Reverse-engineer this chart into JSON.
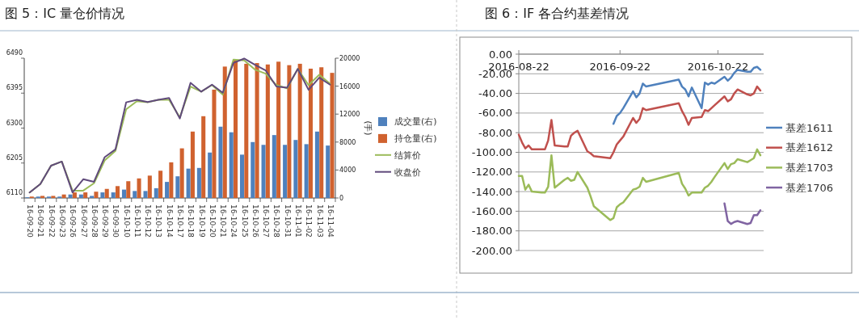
{
  "chart_data": [
    {
      "type": "bar",
      "title": "图 5：IC 量仓价情况",
      "categories": [
        "16-09-20",
        "16-09-21",
        "16-09-22",
        "16-09-23",
        "16-09-26",
        "16-09-27",
        "16-09-28",
        "16-09-29",
        "16-09-30",
        "16-10-10",
        "16-10-11",
        "16-10-12",
        "16-10-13",
        "16-10-14",
        "16-10-17",
        "16-10-18",
        "16-10-19",
        "16-10-20",
        "16-10-21",
        "16-10-24",
        "16-10-25",
        "16-10-26",
        "16-10-27",
        "16-10-28",
        "16-10-31",
        "16-11-01",
        "16-11-02",
        "16-11-03",
        "16-11-04"
      ],
      "series": [
        {
          "name": "成交量(右)",
          "type": "bar",
          "axis": "y2",
          "color": "#4f81bd",
          "values": [
            100,
            200,
            200,
            200,
            500,
            500,
            300,
            800,
            800,
            1200,
            1000,
            1000,
            1400,
            2300,
            3100,
            4200,
            4300,
            6500,
            10200,
            9400,
            6200,
            8000,
            7600,
            9000,
            7600,
            8300,
            7700,
            9500,
            7500
          ]
        },
        {
          "name": "持仓量(右)",
          "type": "bar",
          "axis": "y2",
          "color": "#d0622f",
          "values": [
            200,
            300,
            300,
            500,
            800,
            800,
            900,
            1300,
            1700,
            2400,
            2800,
            3200,
            3900,
            5100,
            7100,
            9500,
            11700,
            15500,
            18800,
            19700,
            19200,
            19300,
            19100,
            19500,
            19000,
            19200,
            18500,
            18700,
            17900
          ]
        },
        {
          "name": "结算价",
          "type": "line",
          "color": "#9bbb59",
          "values": [
            6125,
            6148,
            6198,
            6209,
            6130,
            6130,
            6150,
            6212,
            6238,
            6351,
            6373,
            6370,
            6377,
            6377,
            6329,
            6413,
            6399,
            6417,
            6391,
            6486,
            6484,
            6459,
            6448,
            6417,
            6408,
            6461,
            6417,
            6445,
            6421
          ]
        },
        {
          "name": "收盘价",
          "type": "line",
          "color": "#604a7b",
          "values": [
            6125,
            6148,
            6198,
            6209,
            6125,
            6161,
            6154,
            6221,
            6242,
            6370,
            6377,
            6371,
            6377,
            6382,
            6326,
            6423,
            6399,
            6418,
            6396,
            6477,
            6489,
            6472,
            6457,
            6413,
            6410,
            6461,
            6404,
            6437,
            6418
          ]
        }
      ],
      "ylim": [
        6110,
        6490
      ],
      "yticks": [
        6110,
        6205,
        6300,
        6395,
        6490
      ],
      "y2lim": [
        0,
        20000
      ],
      "y2ticks": [
        0,
        4000,
        8000,
        12000,
        16000,
        20000
      ],
      "y2label": "(手)",
      "legend": "right"
    },
    {
      "type": "line",
      "title": "图 6：IF 各合约基差情况",
      "series": [
        {
          "name": "基差1611",
          "color": "#4f81bd",
          "x": [
            "2016-09-20",
            "2016-09-21",
            "2016-09-22",
            "2016-09-23",
            "2016-09-26",
            "2016-09-27",
            "2016-09-28",
            "2016-09-29",
            "2016-09-30",
            "2016-10-10",
            "2016-10-11",
            "2016-10-12",
            "2016-10-13",
            "2016-10-14",
            "2016-10-17",
            "2016-10-18",
            "2016-10-19",
            "2016-10-20",
            "2016-10-21",
            "2016-10-24",
            "2016-10-25",
            "2016-10-26",
            "2016-10-27",
            "2016-10-28",
            "2016-10-31",
            "2016-11-01",
            "2016-11-02",
            "2016-11-03",
            "2016-11-04"
          ],
          "values": [
            -71,
            -63,
            -60,
            -55,
            -38,
            -44,
            -40,
            -30,
            -33,
            -26,
            -33,
            -36,
            -43,
            -34,
            -55,
            -29,
            -31,
            -29,
            -30,
            -23,
            -27,
            -24,
            -19,
            -16,
            -18,
            -18,
            -14,
            -13,
            -16
          ]
        },
        {
          "name": "基差1612",
          "color": "#c0504d",
          "x": [
            "2016-08-22",
            "2016-08-23",
            "2016-08-24",
            "2016-08-25",
            "2016-08-26",
            "2016-08-29",
            "2016-08-30",
            "2016-08-31",
            "2016-09-01",
            "2016-09-02",
            "2016-09-05",
            "2016-09-06",
            "2016-09-07",
            "2016-09-08",
            "2016-09-09",
            "2016-09-12",
            "2016-09-13",
            "2016-09-14",
            "2016-09-19",
            "2016-09-20",
            "2016-09-21",
            "2016-09-22",
            "2016-09-23",
            "2016-09-26",
            "2016-09-27",
            "2016-09-28",
            "2016-09-29",
            "2016-09-30",
            "2016-10-10",
            "2016-10-11",
            "2016-10-12",
            "2016-10-13",
            "2016-10-14",
            "2016-10-17",
            "2016-10-18",
            "2016-10-19",
            "2016-10-20",
            "2016-10-21",
            "2016-10-24",
            "2016-10-25",
            "2016-10-26",
            "2016-10-27",
            "2016-10-28",
            "2016-10-31",
            "2016-11-01",
            "2016-11-02",
            "2016-11-03",
            "2016-11-04"
          ],
          "values": [
            -82,
            -90,
            -96,
            -93,
            -97,
            -97,
            -97,
            -88,
            -67,
            -93,
            -94,
            -94,
            -83,
            -80,
            -78,
            -99,
            -101,
            -104,
            -106,
            -100,
            -92,
            -88,
            -84,
            -65,
            -70,
            -66,
            -55,
            -57,
            -50,
            -58,
            -64,
            -72,
            -65,
            -64,
            -57,
            -58,
            -55,
            -52,
            -43,
            -48,
            -46,
            -40,
            -36,
            -41,
            -42,
            -40,
            -33,
            -37
          ]
        },
        {
          "name": "基差1703",
          "color": "#9bbb59",
          "x": [
            "2016-08-22",
            "2016-08-23",
            "2016-08-24",
            "2016-08-25",
            "2016-08-26",
            "2016-08-29",
            "2016-08-30",
            "2016-08-31",
            "2016-09-01",
            "2016-09-02",
            "2016-09-05",
            "2016-09-06",
            "2016-09-07",
            "2016-09-08",
            "2016-09-09",
            "2016-09-12",
            "2016-09-13",
            "2016-09-14",
            "2016-09-19",
            "2016-09-20",
            "2016-09-21",
            "2016-09-22",
            "2016-09-23",
            "2016-09-26",
            "2016-09-27",
            "2016-09-28",
            "2016-09-29",
            "2016-09-30",
            "2016-10-10",
            "2016-10-11",
            "2016-10-12",
            "2016-10-13",
            "2016-10-14",
            "2016-10-17",
            "2016-10-18",
            "2016-10-19",
            "2016-10-20",
            "2016-10-21",
            "2016-10-24",
            "2016-10-25",
            "2016-10-26",
            "2016-10-27",
            "2016-10-28",
            "2016-10-31",
            "2016-11-01",
            "2016-11-02",
            "2016-11-03",
            "2016-11-04"
          ],
          "values": [
            -124,
            -124,
            -138,
            -133,
            -140,
            -141,
            -141,
            -135,
            -103,
            -136,
            -128,
            -126,
            -129,
            -128,
            -120,
            -136,
            -145,
            -155,
            -169,
            -167,
            -156,
            -153,
            -151,
            -138,
            -137,
            -135,
            -126,
            -130,
            -121,
            -132,
            -137,
            -144,
            -141,
            -141,
            -136,
            -134,
            -130,
            -125,
            -111,
            -117,
            -112,
            -111,
            -107,
            -110,
            -108,
            -106,
            -97,
            -103
          ]
        },
        {
          "name": "基差1706",
          "color": "#8064a2",
          "x": [
            "2016-10-24",
            "2016-10-25",
            "2016-10-26",
            "2016-10-27",
            "2016-10-28",
            "2016-10-31",
            "2016-11-01",
            "2016-11-02",
            "2016-11-03",
            "2016-11-04"
          ],
          "values": [
            -152,
            -170,
            -173,
            -171,
            -170,
            -173,
            -172,
            -164,
            -164,
            -159
          ]
        }
      ],
      "xlim": [
        "2016-08-22",
        "2016-11-05"
      ],
      "xticks": [
        "2016-08-22",
        "2016-09-22",
        "2016-10-22"
      ],
      "ylim": [
        -200,
        0
      ],
      "yticks": [
        {
          "value": 0,
          "label": "0.00"
        },
        {
          "value": -20,
          "label": "-20.00"
        },
        {
          "value": -40,
          "label": "-40.00"
        },
        {
          "value": -60,
          "label": "-60.00"
        },
        {
          "value": -80,
          "label": "-80.00"
        },
        {
          "value": -100,
          "label": "-100.00"
        },
        {
          "value": -120,
          "label": "-120.00"
        },
        {
          "value": -140,
          "label": "-140.00"
        },
        {
          "value": -160,
          "label": "-160.00"
        },
        {
          "value": -180,
          "label": "-180.00"
        },
        {
          "value": -200,
          "label": "-200.00"
        }
      ],
      "grid": "y",
      "legend": "right"
    }
  ]
}
